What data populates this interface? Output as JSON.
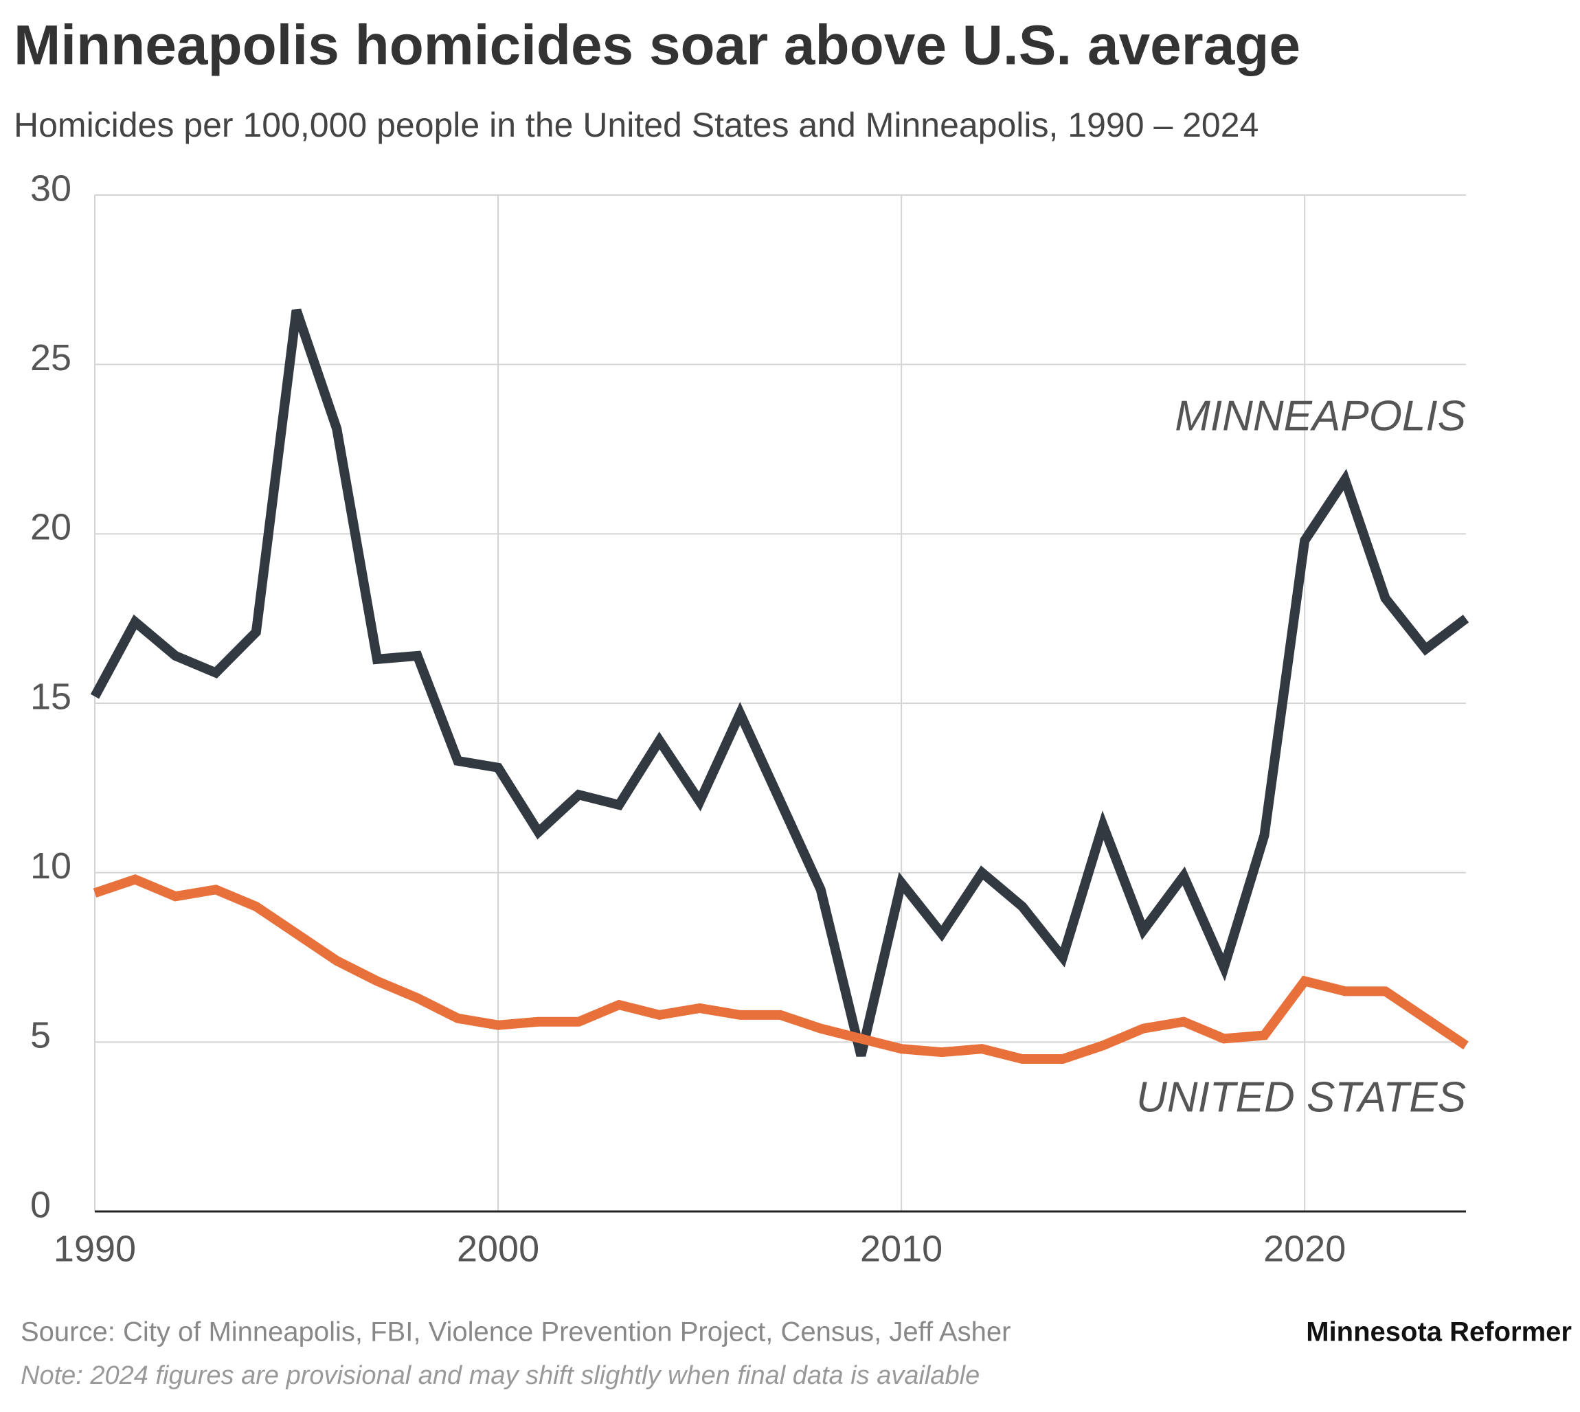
{
  "chart_data": {
    "type": "line",
    "title": "Minneapolis homicides soar above U.S. average",
    "subtitle": "Homicides per 100,000 people in the United States and Minneapolis, 1990 – 2024",
    "x": [
      1990,
      1991,
      1992,
      1993,
      1994,
      1995,
      1996,
      1997,
      1998,
      1999,
      2000,
      2001,
      2002,
      2003,
      2004,
      2005,
      2006,
      2007,
      2008,
      2009,
      2010,
      2011,
      2012,
      2013,
      2014,
      2015,
      2016,
      2017,
      2018,
      2019,
      2020,
      2021,
      2022,
      2023,
      2024
    ],
    "series": [
      {
        "name": "MINNEAPOLIS",
        "color": "#323941",
        "values": [
          15.2,
          17.4,
          16.4,
          15.9,
          17.1,
          26.6,
          23.1,
          16.3,
          16.4,
          13.3,
          13.1,
          11.2,
          12.3,
          12.0,
          13.9,
          12.1,
          14.7,
          12.1,
          9.5,
          4.6,
          9.7,
          8.2,
          10.0,
          9.0,
          7.5,
          11.4,
          8.3,
          9.9,
          7.2,
          11.1,
          19.8,
          21.6,
          18.1,
          16.6,
          17.5
        ]
      },
      {
        "name": "UNITED STATES",
        "color": "#e8703a",
        "values": [
          9.4,
          9.8,
          9.3,
          9.5,
          9.0,
          8.2,
          7.4,
          6.8,
          6.3,
          5.7,
          5.5,
          5.6,
          5.6,
          6.1,
          5.8,
          6.0,
          5.8,
          5.8,
          5.4,
          5.1,
          4.8,
          4.7,
          4.8,
          4.5,
          4.5,
          4.9,
          5.4,
          5.6,
          5.1,
          5.2,
          6.8,
          6.5,
          6.5,
          5.7,
          4.9
        ]
      }
    ],
    "xlim": [
      1990,
      2024
    ],
    "xticks": [
      1990,
      2000,
      2010,
      2020
    ],
    "ylim": [
      0,
      30
    ],
    "yticks": [
      0,
      5,
      10,
      15,
      20,
      25,
      30
    ],
    "grid": true,
    "source": "Source: City of Minneapolis, FBI, Violence Prevention Project, Census, Jeff Asher",
    "brand": "Minnesota Reformer",
    "note": "Note: 2024 figures are provisional and may shift slightly when final data is available"
  }
}
